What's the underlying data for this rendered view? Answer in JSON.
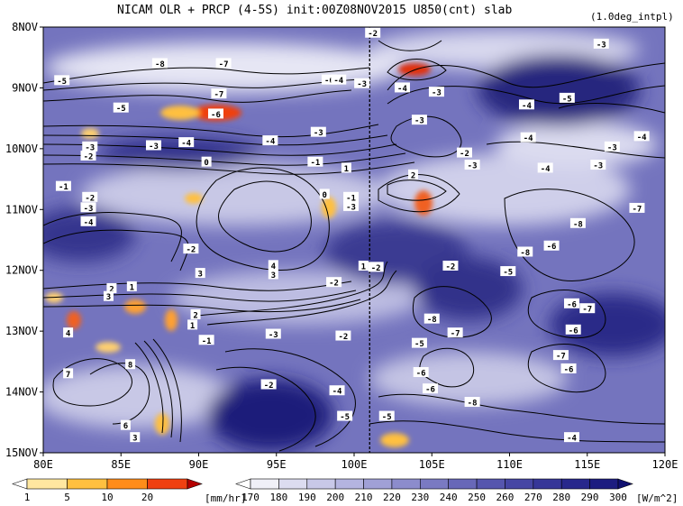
{
  "chart_data": {
    "type": "heatmap",
    "title": "NICAM  OLR + PRCP (4-5S) init:00Z08NOV2015 U850(cnt) slab",
    "note": "(1.0deg_intpl)",
    "x_ticks": [
      "80E",
      "85E",
      "90E",
      "95E",
      "100E",
      "105E",
      "110E",
      "115E",
      "120E"
    ],
    "y_ticks": [
      "8NOV",
      "9NOV",
      "10NOV",
      "11NOV",
      "12NOV",
      "13NOV",
      "14NOV",
      "15NOV"
    ],
    "xlim": [
      80,
      120
    ],
    "ylim_days": [
      8,
      15
    ],
    "reference_line_lon": 101,
    "prcp_colorbar": {
      "levels": [
        "1",
        "5",
        "10",
        "20"
      ],
      "unit": "[mm/hr]",
      "colors": [
        "#ffffff",
        "#ffe7a0",
        "#ffc040",
        "#ff8c1a",
        "#f04010",
        "#b40000"
      ]
    },
    "olr_colorbar": {
      "levels": [
        "170",
        "180",
        "190",
        "200",
        "210",
        "220",
        "230",
        "240",
        "250",
        "260",
        "270",
        "280",
        "290",
        "300"
      ],
      "unit": "[W/m^2]",
      "colors": [
        "#ffffff",
        "#f0f0f8",
        "#dcdcf0",
        "#c8c8e8",
        "#b4b4e0",
        "#a0a0d6",
        "#8c8ccc",
        "#7a7ac2",
        "#6868b8",
        "#5656ae",
        "#4646a4",
        "#363698",
        "#28288c",
        "#1c1c80",
        "#101070"
      ]
    },
    "contour_labels": [
      {
        "text": "-2",
        "lon": 101.2,
        "day": 8.1
      },
      {
        "text": "-3",
        "lon": 115.9,
        "day": 8.28
      },
      {
        "text": "-8",
        "lon": 87.5,
        "day": 8.6
      },
      {
        "text": "-7",
        "lon": 91.6,
        "day": 8.6
      },
      {
        "text": "-5",
        "lon": 81.2,
        "day": 8.88
      },
      {
        "text": "-6",
        "lon": 98.4,
        "day": 8.87
      },
      {
        "text": "-4",
        "lon": 99.0,
        "day": 8.87
      },
      {
        "text": "-3",
        "lon": 100.5,
        "day": 8.93
      },
      {
        "text": "-4",
        "lon": 103.1,
        "day": 9.0
      },
      {
        "text": "-3",
        "lon": 105.3,
        "day": 9.07
      },
      {
        "text": "-5",
        "lon": 113.7,
        "day": 9.17
      },
      {
        "text": "-4",
        "lon": 111.1,
        "day": 9.28
      },
      {
        "text": "-5",
        "lon": 85.0,
        "day": 9.33
      },
      {
        "text": "-7",
        "lon": 91.3,
        "day": 9.1
      },
      {
        "text": "-6",
        "lon": 91.1,
        "day": 9.43
      },
      {
        "text": "-3",
        "lon": 104.2,
        "day": 9.53
      },
      {
        "text": "-4",
        "lon": 111.2,
        "day": 9.82
      },
      {
        "text": "-4",
        "lon": 118.5,
        "day": 9.8
      },
      {
        "text": "-3",
        "lon": 116.6,
        "day": 9.97
      },
      {
        "text": "-3",
        "lon": 87.1,
        "day": 9.95
      },
      {
        "text": "-4",
        "lon": 89.2,
        "day": 9.9
      },
      {
        "text": "-4",
        "lon": 94.6,
        "day": 9.87
      },
      {
        "text": "-3",
        "lon": 97.7,
        "day": 9.73
      },
      {
        "text": "-3",
        "lon": 83.0,
        "day": 9.97
      },
      {
        "text": "-2",
        "lon": 82.9,
        "day": 10.12
      },
      {
        "text": "0",
        "lon": 90.5,
        "day": 10.22
      },
      {
        "text": "-1",
        "lon": 97.5,
        "day": 10.22
      },
      {
        "text": "1",
        "lon": 99.5,
        "day": 10.32
      },
      {
        "text": "-2",
        "lon": 107.1,
        "day": 10.07
      },
      {
        "text": "-3",
        "lon": 107.6,
        "day": 10.27
      },
      {
        "text": "-4",
        "lon": 112.3,
        "day": 10.32
      },
      {
        "text": "-3",
        "lon": 115.7,
        "day": 10.27
      },
      {
        "text": "-1",
        "lon": 81.3,
        "day": 10.62
      },
      {
        "text": "2",
        "lon": 103.8,
        "day": 10.43
      },
      {
        "text": "0",
        "lon": 98.1,
        "day": 10.75
      },
      {
        "text": "-1",
        "lon": 99.8,
        "day": 10.8
      },
      {
        "text": "-3",
        "lon": 99.8,
        "day": 10.95
      },
      {
        "text": "-2",
        "lon": 83.0,
        "day": 10.8
      },
      {
        "text": "-3",
        "lon": 82.9,
        "day": 10.97
      },
      {
        "text": "-4",
        "lon": 82.9,
        "day": 11.2
      },
      {
        "text": "-7",
        "lon": 118.2,
        "day": 10.98
      },
      {
        "text": "-8",
        "lon": 114.4,
        "day": 11.23
      },
      {
        "text": "-2",
        "lon": 89.5,
        "day": 11.65
      },
      {
        "text": "-8",
        "lon": 111.0,
        "day": 11.7
      },
      {
        "text": "-6",
        "lon": 112.7,
        "day": 11.6
      },
      {
        "text": "-2",
        "lon": 106.2,
        "day": 11.93
      },
      {
        "text": "-5",
        "lon": 109.9,
        "day": 12.02
      },
      {
        "text": "1",
        "lon": 100.6,
        "day": 11.93
      },
      {
        "text": "-2",
        "lon": 101.4,
        "day": 11.95
      },
      {
        "text": "3",
        "lon": 90.1,
        "day": 12.05
      },
      {
        "text": "4",
        "lon": 94.8,
        "day": 11.92
      },
      {
        "text": "3",
        "lon": 94.8,
        "day": 12.07
      },
      {
        "text": "-2",
        "lon": 98.7,
        "day": 12.2
      },
      {
        "text": "1",
        "lon": 85.7,
        "day": 12.27
      },
      {
        "text": "2",
        "lon": 84.4,
        "day": 12.3
      },
      {
        "text": "3",
        "lon": 84.2,
        "day": 12.43
      },
      {
        "text": "-6",
        "lon": 114.0,
        "day": 12.55
      },
      {
        "text": "-7",
        "lon": 115.0,
        "day": 12.63
      },
      {
        "text": "2",
        "lon": 89.8,
        "day": 12.73
      },
      {
        "text": "-8",
        "lon": 105.0,
        "day": 12.8
      },
      {
        "text": "-7",
        "lon": 106.5,
        "day": 13.03
      },
      {
        "text": "-6",
        "lon": 114.1,
        "day": 12.98
      },
      {
        "text": "1",
        "lon": 89.6,
        "day": 12.9
      },
      {
        "text": "-1",
        "lon": 90.5,
        "day": 13.15
      },
      {
        "text": "-3",
        "lon": 94.8,
        "day": 13.05
      },
      {
        "text": "-2",
        "lon": 99.3,
        "day": 13.08
      },
      {
        "text": "-5",
        "lon": 104.2,
        "day": 13.2
      },
      {
        "text": "4",
        "lon": 81.6,
        "day": 13.03
      },
      {
        "text": "-7",
        "lon": 113.3,
        "day": 13.4
      },
      {
        "text": "-6",
        "lon": 113.8,
        "day": 13.62
      },
      {
        "text": "8",
        "lon": 85.6,
        "day": 13.55
      },
      {
        "text": "7",
        "lon": 81.6,
        "day": 13.7
      },
      {
        "text": "-6",
        "lon": 104.3,
        "day": 13.68
      },
      {
        "text": "-2",
        "lon": 94.5,
        "day": 13.88
      },
      {
        "text": "-4",
        "lon": 98.9,
        "day": 13.98
      },
      {
        "text": "-6",
        "lon": 104.9,
        "day": 13.95
      },
      {
        "text": "-8",
        "lon": 107.6,
        "day": 14.17
      },
      {
        "text": "-5",
        "lon": 99.4,
        "day": 14.4
      },
      {
        "text": "-5",
        "lon": 102.1,
        "day": 14.4
      },
      {
        "text": "6",
        "lon": 85.3,
        "day": 14.55
      },
      {
        "text": "3",
        "lon": 85.9,
        "day": 14.75
      },
      {
        "text": "-4",
        "lon": 114.0,
        "day": 14.75
      }
    ]
  }
}
